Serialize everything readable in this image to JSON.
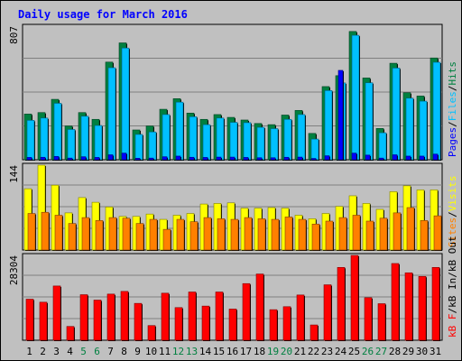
{
  "chart_data": {
    "type": "bar",
    "title": "Daily usage for March 2016",
    "days": [
      1,
      2,
      3,
      4,
      5,
      6,
      7,
      8,
      9,
      10,
      11,
      12,
      13,
      14,
      15,
      16,
      17,
      18,
      19,
      20,
      21,
      22,
      23,
      24,
      25,
      26,
      27,
      28,
      29,
      30,
      31
    ],
    "weekend_days": [
      5,
      6,
      12,
      13,
      19,
      20,
      26,
      27
    ],
    "panels": [
      {
        "name": "pages-files-hits",
        "max_label": "807",
        "ymax": 807,
        "legend": [
          "Pages",
          "/",
          "Files",
          "/",
          "Hits"
        ],
        "series": [
          {
            "name": "Hits",
            "color": "#008040",
            "values": [
              276,
              285,
              365,
              204,
              285,
              244,
              590,
              706,
              180,
              204,
              305,
              369,
              282,
              244,
              273,
              256,
              240,
              219,
              212,
              270,
              298,
              159,
              442,
              508,
              775,
              494,
              189,
              583,
              405,
              385,
              615
            ]
          },
          {
            "name": "Files",
            "color": "#00c0ff",
            "values": [
              238,
              252,
              341,
              183,
              263,
              207,
              556,
              675,
              153,
              168,
              273,
              348,
              260,
              212,
              252,
              226,
              224,
              196,
              188,
              244,
              273,
              125,
              418,
              464,
              752,
              465,
              163,
              554,
              372,
              354,
              589
            ]
          },
          {
            "name": "Pages",
            "color": "#0000ff",
            "values": [
              14,
              15,
              20,
              10,
              18,
              14,
              30,
              40,
              9,
              10,
              18,
              22,
              15,
              14,
              16,
              16,
              14,
              12,
              12,
              15,
              16,
              8,
              24,
              540,
              40,
              28,
              10,
              30,
              22,
              22,
              34
            ]
          }
        ]
      },
      {
        "name": "visits-sites",
        "max_label": "144",
        "ymax": 144,
        "legend": [
          "Sites",
          "/",
          "Visits"
        ],
        "series": [
          {
            "name": "Visits",
            "color": "#ffff00",
            "values": [
              104,
              144,
              110,
              63,
              89,
              81,
              73,
              57,
              57,
              61,
              52,
              59,
              62,
              78,
              79,
              80,
              71,
              71,
              72,
              71,
              59,
              53,
              62,
              74,
              92,
              79,
              69,
              99,
              109,
              102,
              102
            ]
          },
          {
            "name": "Sites",
            "color": "#ff8000",
            "values": [
              62,
              64,
              59,
              45,
              55,
              50,
              55,
              54,
              45,
              52,
              35,
              52,
              48,
              55,
              53,
              52,
              55,
              53,
              52,
              56,
              52,
              44,
              49,
              55,
              59,
              49,
              54,
              63,
              72,
              50,
              58
            ]
          }
        ]
      },
      {
        "name": "kbytes",
        "max_label": "28304",
        "ymax": 28304,
        "legend": [
          "kB F",
          "/",
          "kB In",
          "/",
          "kB Out"
        ],
        "series": [
          {
            "name": "kB F",
            "color": "#ff0000",
            "values": [
              13700,
              12700,
              18100,
              4600,
              15200,
              13400,
              15400,
              16300,
              12300,
              4900,
              15700,
              10900,
              16100,
              11400,
              16100,
              10400,
              18900,
              22100,
              10200,
              11200,
              15100,
              5100,
              18500,
              24300,
              28304,
              14200,
              12200,
              25600,
              22500,
              21300,
              24300
            ]
          }
        ]
      }
    ]
  }
}
